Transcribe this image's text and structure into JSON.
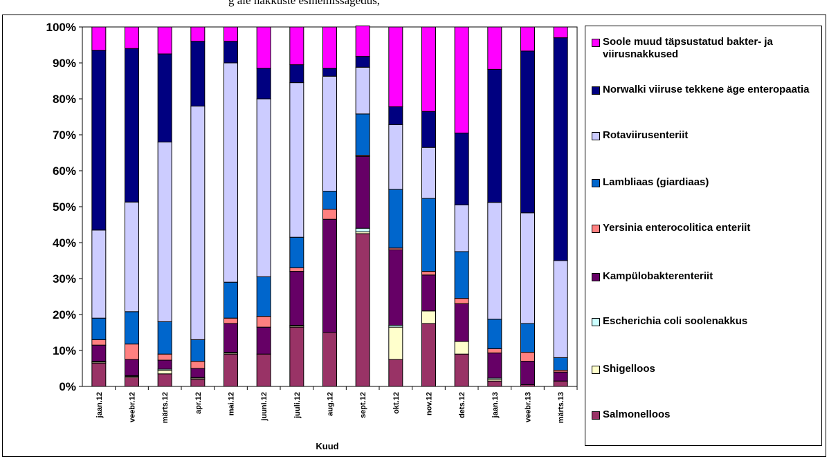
{
  "header_fragment": "g  ale nakkuste esinemissagedus,",
  "chart_data": {
    "type": "bar",
    "stacked": true,
    "percent": true,
    "xlabel": "Kuud",
    "ylabel": "",
    "ylim": [
      0,
      100
    ],
    "y_ticks": [
      "0%",
      "10%",
      "20%",
      "30%",
      "40%",
      "50%",
      "60%",
      "70%",
      "80%",
      "90%",
      "100%"
    ],
    "grid": false,
    "legend_position": "right",
    "categories": [
      "jaan.12",
      "veebr.12",
      "märts.12",
      "apr.12",
      "mai.12",
      "juuni.12",
      "juuli.12",
      "aug.12",
      "sept.12",
      "okt.12",
      "nov.12",
      "dets.12",
      "jaan.13",
      "veebr.13",
      "märts.13"
    ],
    "series": [
      {
        "name": "Salmonelloos",
        "color": "#993366",
        "values": [
          6.5,
          2.5,
          3.5,
          2.0,
          9.0,
          9.0,
          16.5,
          15.0,
          42.5,
          7.5,
          17.5,
          9.0,
          1.5,
          0.5,
          1.5
        ]
      },
      {
        "name": "Shigelloos",
        "color": "#FFFFCC",
        "values": [
          0.3,
          0.3,
          1.0,
          0.3,
          0.3,
          0,
          0.3,
          0,
          0.5,
          9.0,
          3.5,
          3.5,
          0.5,
          0,
          0
        ]
      },
      {
        "name": "Escherichia coli soolenakkus",
        "color": "#CCFFFF",
        "values": [
          0.2,
          0.2,
          0.3,
          0.2,
          0.2,
          0,
          0.2,
          0,
          1.0,
          0.5,
          0,
          0,
          0.3,
          0,
          0
        ]
      },
      {
        "name": "Kampülobakterenteriit",
        "color": "#660066",
        "values": [
          4.5,
          4.5,
          2.5,
          2.5,
          8.0,
          7.5,
          15.0,
          31.5,
          20.0,
          21.0,
          10.0,
          10.5,
          7.0,
          6.5,
          2.5
        ]
      },
      {
        "name": "Yersinia enterocolitica enteriit",
        "color": "#FF8080",
        "values": [
          1.5,
          4.3,
          1.7,
          2.0,
          1.5,
          3.0,
          1.0,
          2.8,
          0.3,
          0.5,
          1.0,
          1.5,
          1.2,
          2.5,
          0.5
        ]
      },
      {
        "name": "Lambliaas (giardiaas)",
        "color": "#0066CC",
        "values": [
          6.0,
          9.0,
          9.0,
          6.0,
          10.0,
          11.0,
          8.5,
          5.0,
          11.5,
          16.3,
          20.3,
          13.0,
          8.2,
          8.0,
          3.5
        ]
      },
      {
        "name": "Rotaviirusenteriit",
        "color": "#CCCCFF",
        "values": [
          24.5,
          30.5,
          50.0,
          65.0,
          61.0,
          49.5,
          43.0,
          32.0,
          13.0,
          18.0,
          14.2,
          13.0,
          32.5,
          30.8,
          27.0
        ]
      },
      {
        "name": "Norwalki viiruse tekkene äge enteropaatia",
        "color": "#000080",
        "values": [
          50.0,
          42.7,
          24.5,
          18.0,
          6.0,
          8.5,
          5.0,
          2.2,
          3.0,
          5.0,
          10.0,
          20.0,
          37.0,
          45.0,
          62.0
        ]
      },
      {
        "name": "Soole muud täpsustatud bakter- ja viirusnakkused",
        "color": "#FF00FF",
        "values": [
          6.5,
          6.0,
          7.5,
          4.0,
          4.0,
          11.5,
          10.5,
          11.5,
          8.5,
          22.2,
          23.5,
          29.5,
          11.8,
          6.7,
          3.0
        ]
      }
    ]
  }
}
